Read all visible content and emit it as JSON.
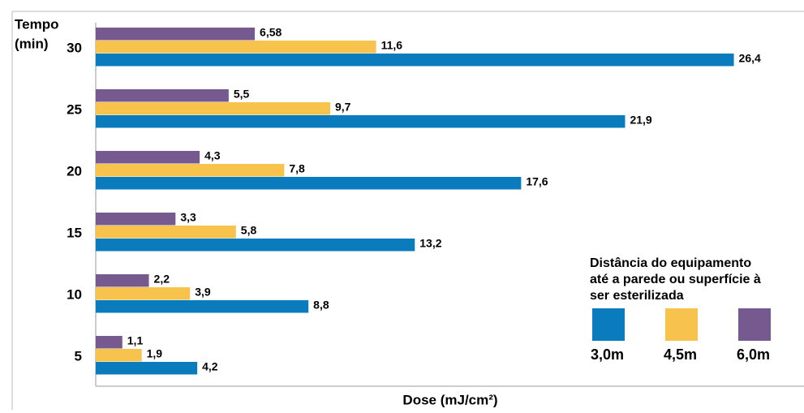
{
  "chart_data": {
    "type": "bar",
    "orientation": "horizontal",
    "ylabel": [
      "Tempo",
      "(min)"
    ],
    "xlabel": "Dose (mJ/cm²)",
    "categories": [
      "30",
      "25",
      "20",
      "15",
      "10",
      "5"
    ],
    "series": [
      {
        "name": "6,0m",
        "color": "#76598f",
        "values": [
          6.58,
          5.5,
          4.3,
          3.3,
          2.2,
          1.1
        ],
        "value_labels": [
          "6,58",
          "5,5",
          "4,3",
          "3,3",
          "2,2",
          "1,1"
        ]
      },
      {
        "name": "4,5m",
        "color": "#f7c34c",
        "values": [
          11.6,
          9.7,
          7.8,
          5.8,
          3.9,
          1.9
        ],
        "value_labels": [
          "11,6",
          "9,7",
          "7,8",
          "5,8",
          "3,9",
          "1,9"
        ]
      },
      {
        "name": "3,0m",
        "color": "#0a7bbd",
        "values": [
          26.4,
          21.9,
          17.6,
          13.2,
          8.8,
          4.2
        ],
        "value_labels": [
          "26,4",
          "21,9",
          "17,6",
          "13,2",
          "8,8",
          "4,2"
        ]
      }
    ],
    "legend_title": [
      "Distância do equipamento",
      "até a parede ou superfície à",
      "ser esterilizada"
    ],
    "legend_order": [
      2,
      1,
      0
    ],
    "xlim": [
      0,
      29
    ]
  }
}
